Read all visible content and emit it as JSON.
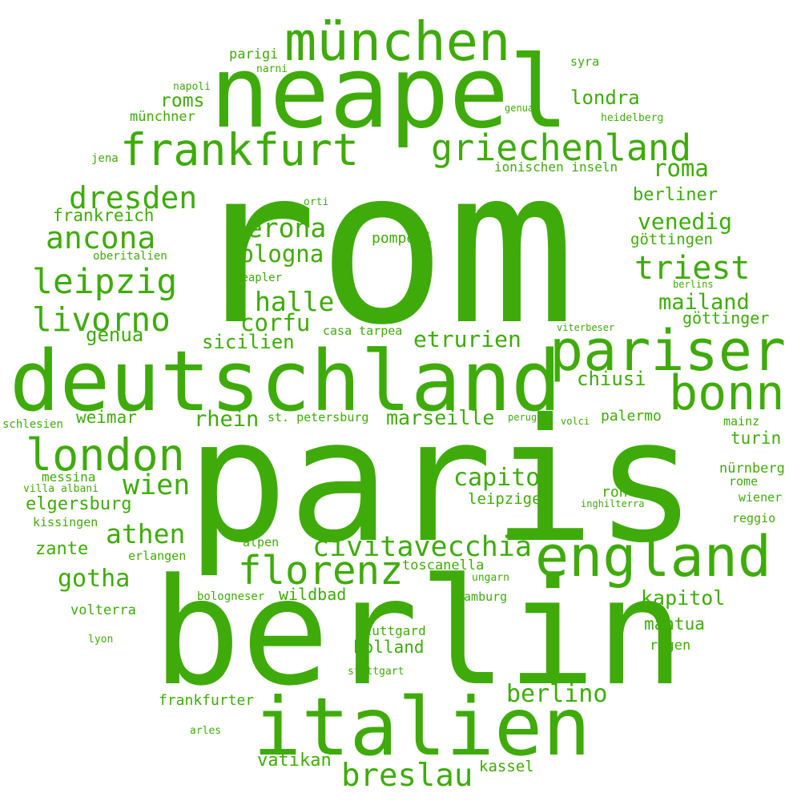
{
  "color": "#3fab0a",
  "words": [
    "rom",
    "paris",
    "berlin",
    "deutschland",
    "neapel",
    "italien",
    "england",
    "pariser",
    "münchen",
    "bonn",
    "frankfurt",
    "london",
    "florenz",
    "griechenland",
    "civitavecchia",
    "leipzig",
    "livorno",
    "ancona",
    "dresden",
    "triest",
    "breslau",
    "verona",
    "halle",
    "wien",
    "athen",
    "bologna",
    "capitol",
    "berlino",
    "gotha",
    "corfu",
    "mailand",
    "etrurien",
    "roma",
    "venedig",
    "marseille",
    "rhein",
    "sicilien",
    "kapitol",
    "londra",
    "berliner",
    "elgersburg",
    "chiusi",
    "frankreich",
    "genua",
    "zante",
    "weimar",
    "pompeji",
    "roms",
    "göttingen",
    "turin",
    "wildbad",
    "palermo",
    "holland",
    "göttinger",
    "mantua",
    "leipziger",
    "vatikan",
    "kassel",
    "frankfurter",
    "parigi",
    "toscanella",
    "nürnberg",
    "ron",
    "münchner",
    "rügen",
    "stuttgard",
    "volterra",
    "ionischen inseln",
    "messina",
    "kissingen",
    "st. petersburg",
    "hamburg",
    "mainz",
    "casa tarpea",
    "reggio",
    "erlangen",
    "alpen",
    "wiener",
    "rome",
    "napoli",
    "syra",
    "jena",
    "neapler",
    "heidelberg",
    "bologneser",
    "oberitalien",
    "villa albani",
    "schlesien",
    "narni",
    "genua",
    "ungarn",
    "perugia",
    "volci",
    "viterbeser",
    "berlins",
    "orti",
    "inghilterra",
    "stuttgart",
    "lyon",
    "arles"
  ]
}
